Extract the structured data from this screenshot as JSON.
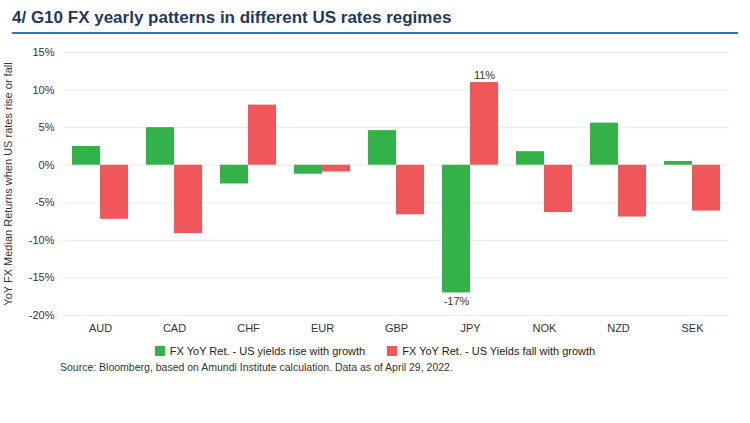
{
  "chart_data": {
    "type": "bar",
    "title": "4/ G10 FX yearly patterns in different US rates regimes",
    "ylabel": "YoY FX Median Returns when US rates rise or fall",
    "caption": "Source: Bloomberg, based on Amundi Institute calculation. Data as of April 29, 2022.",
    "categories": [
      "AUD",
      "CAD",
      "CHF",
      "EUR",
      "GBP",
      "JPY",
      "NOK",
      "NZD",
      "SEK"
    ],
    "series": [
      {
        "name": "FX YoY Ret. - US yields rise with growth",
        "color": "#33b249",
        "values": [
          2.5,
          5.0,
          -2.5,
          -1.2,
          4.6,
          -17.0,
          1.8,
          5.6,
          0.5
        ],
        "value_labels": [
          null,
          null,
          null,
          null,
          null,
          "-17%",
          null,
          null,
          null
        ]
      },
      {
        "name": "FX YoY Ret. - US Yields fall with growth",
        "color": "#f0575b",
        "values": [
          -7.2,
          -9.1,
          8.0,
          -0.9,
          -6.6,
          11.0,
          -6.3,
          -6.9,
          -6.1
        ],
        "value_labels": [
          null,
          null,
          null,
          null,
          null,
          "11%",
          null,
          null,
          null
        ]
      }
    ],
    "ylim": [
      -20,
      15
    ],
    "yticks": [
      {
        "value": -20,
        "label": "-20%"
      },
      {
        "value": -15,
        "label": "-15%"
      },
      {
        "value": -10,
        "label": "-10%"
      },
      {
        "value": -5,
        "label": "-5%"
      },
      {
        "value": 0,
        "label": "0%"
      },
      {
        "value": 5,
        "label": "5%"
      },
      {
        "value": 10,
        "label": "10%"
      },
      {
        "value": 15,
        "label": "15%"
      }
    ],
    "grid": true,
    "legend": "bottom"
  }
}
